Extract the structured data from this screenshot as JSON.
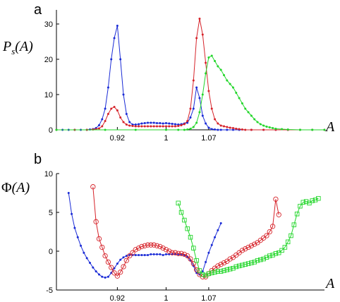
{
  "chart_data": [
    {
      "type": "line",
      "panel_label": "a",
      "ylabel": "P_s(A)",
      "ylabel_main": "P",
      "ylabel_sub": "s",
      "ylabel_tail": "(A)",
      "xlabel": "A",
      "xlim": [
        0.82,
        1.26
      ],
      "ylim": [
        0,
        34
      ],
      "yticks": [
        0,
        10,
        20,
        30
      ],
      "xticks": [
        0.92,
        1,
        1.07
      ],
      "xtick_labels": [
        "0.92",
        "1",
        "1.07"
      ],
      "grid": false,
      "series": [
        {
          "color": "#1a2bd6",
          "marker": "dot",
          "x": [
            0.82,
            0.83,
            0.84,
            0.85,
            0.86,
            0.87,
            0.875,
            0.88,
            0.885,
            0.89,
            0.895,
            0.9,
            0.905,
            0.91,
            0.915,
            0.92,
            0.925,
            0.93,
            0.935,
            0.94,
            0.945,
            0.95,
            0.955,
            0.96,
            0.965,
            0.97,
            0.975,
            0.98,
            0.985,
            0.99,
            0.995,
            1.0,
            1.005,
            1.01,
            1.015,
            1.02,
            1.025,
            1.03,
            1.035,
            1.04,
            1.045,
            1.05,
            1.055,
            1.06,
            1.065,
            1.07,
            1.075,
            1.08,
            1.085,
            1.09,
            1.1,
            1.11,
            1.12,
            1.14,
            1.16,
            1.18,
            1.2,
            1.22,
            1.24,
            1.26
          ],
          "y": [
            0,
            0,
            0,
            0,
            0,
            0,
            0.1,
            0.2,
            0.5,
            1.3,
            3,
            6,
            12,
            20,
            26,
            29.5,
            20,
            10,
            4.5,
            2.2,
            1.5,
            1.5,
            1.6,
            1.8,
            1.9,
            2.0,
            2.0,
            2.0,
            1.9,
            1.9,
            1.8,
            1.9,
            1.8,
            1.7,
            1.6,
            1.5,
            1.6,
            1.8,
            2.0,
            3.5,
            6,
            12,
            9,
            4,
            1.8,
            0.6,
            0.2,
            0.1,
            0,
            0,
            0,
            0,
            0,
            0,
            0,
            0,
            0,
            0,
            0,
            0
          ]
        },
        {
          "color": "#d6232a",
          "marker": "dot",
          "x": [
            0.82,
            0.85,
            0.87,
            0.88,
            0.885,
            0.89,
            0.895,
            0.9,
            0.905,
            0.91,
            0.915,
            0.92,
            0.925,
            0.93,
            0.935,
            0.94,
            0.945,
            0.95,
            0.955,
            0.96,
            0.965,
            0.97,
            0.975,
            0.98,
            0.985,
            0.99,
            0.995,
            1.0,
            1.005,
            1.01,
            1.015,
            1.02,
            1.025,
            1.03,
            1.035,
            1.04,
            1.045,
            1.05,
            1.055,
            1.06,
            1.065,
            1.07,
            1.075,
            1.08,
            1.085,
            1.09,
            1.095,
            1.1,
            1.105,
            1.11,
            1.115,
            1.12,
            1.125,
            1.13,
            1.14,
            1.16,
            1.18,
            1.2,
            1.22,
            1.24,
            1.26
          ],
          "y": [
            0,
            0,
            0,
            0.1,
            0.2,
            0.4,
            1,
            2.5,
            4.5,
            6,
            6.5,
            5.5,
            3.5,
            2.2,
            1.5,
            1.2,
            1.1,
            1.0,
            1.0,
            1.0,
            1.0,
            1.0,
            1.0,
            1.0,
            1.0,
            1.0,
            1.0,
            1.0,
            1.0,
            1.0,
            1.0,
            1.1,
            1.3,
            1.6,
            2.5,
            6,
            14,
            26,
            31.5,
            27,
            19,
            11,
            6,
            3,
            1.8,
            1.2,
            1.0,
            0.8,
            0.6,
            0.5,
            0.3,
            0.2,
            0.1,
            0,
            0,
            0,
            0,
            0,
            0,
            0,
            0
          ]
        },
        {
          "color": "#22d62a",
          "marker": "dot",
          "x": [
            0.82,
            0.9,
            0.95,
            1.0,
            1.02,
            1.03,
            1.035,
            1.04,
            1.045,
            1.05,
            1.055,
            1.06,
            1.065,
            1.07,
            1.075,
            1.08,
            1.085,
            1.09,
            1.095,
            1.1,
            1.105,
            1.11,
            1.115,
            1.12,
            1.125,
            1.13,
            1.135,
            1.14,
            1.145,
            1.15,
            1.155,
            1.16,
            1.165,
            1.17,
            1.175,
            1.18,
            1.19,
            1.2,
            1.22,
            1.24,
            1.26
          ],
          "y": [
            0,
            0,
            0,
            0,
            0,
            0,
            0.1,
            0.3,
            0.8,
            2,
            5,
            10,
            16,
            20.5,
            21,
            19.5,
            18,
            17,
            15.5,
            14,
            13,
            12,
            10.5,
            9,
            7.5,
            6,
            5,
            4,
            3,
            2.2,
            1.6,
            1.2,
            0.9,
            0.7,
            0.5,
            0.3,
            0.2,
            0.1,
            0,
            0,
            0
          ]
        }
      ]
    },
    {
      "type": "line",
      "panel_label": "b",
      "ylabel": "Φ(A)",
      "ylabel_main": "Φ",
      "ylabel_tail": "(A)",
      "xlabel": "A",
      "xlim": [
        0.82,
        1.26
      ],
      "ylim": [
        -5,
        10
      ],
      "yticks": [
        -5,
        0,
        5,
        10
      ],
      "xticks": [
        0.92,
        1,
        1.07
      ],
      "xtick_labels": [
        "0.92",
        "1",
        "1.07"
      ],
      "grid": false,
      "series": [
        {
          "color": "#1a2bd6",
          "marker": "dot",
          "x": [
            0.84,
            0.845,
            0.85,
            0.855,
            0.86,
            0.865,
            0.87,
            0.875,
            0.88,
            0.885,
            0.89,
            0.895,
            0.9,
            0.905,
            0.91,
            0.915,
            0.92,
            0.925,
            0.93,
            0.935,
            0.94,
            0.945,
            0.95,
            0.955,
            0.96,
            0.965,
            0.97,
            0.975,
            0.98,
            0.985,
            0.99,
            0.995,
            1.0,
            1.005,
            1.01,
            1.015,
            1.02,
            1.025,
            1.03,
            1.035,
            1.04,
            1.045,
            1.05,
            1.055,
            1.06,
            1.065,
            1.07,
            1.075,
            1.08,
            1.085,
            1.09
          ],
          "y": [
            7.5,
            4.8,
            3.0,
            1.8,
            0.7,
            -0.2,
            -0.9,
            -1.5,
            -2.1,
            -2.6,
            -3.0,
            -3.3,
            -3.4,
            -3.3,
            -2.8,
            -2.2,
            -1.6,
            -1.1,
            -0.8,
            -0.6,
            -0.5,
            -0.5,
            -0.5,
            -0.5,
            -0.5,
            -0.5,
            -0.5,
            -0.4,
            -0.4,
            -0.4,
            -0.4,
            -0.5,
            -0.4,
            -0.4,
            -0.4,
            -0.4,
            -0.4,
            -0.4,
            -0.5,
            -0.7,
            -1.2,
            -1.9,
            -2.8,
            -3.0,
            -2.6,
            -1.4,
            -0.2,
            0.8,
            1.8,
            2.7,
            3.6
          ]
        },
        {
          "color": "#d6232a",
          "marker": "circle",
          "x": [
            0.88,
            0.885,
            0.89,
            0.895,
            0.9,
            0.905,
            0.91,
            0.915,
            0.92,
            0.925,
            0.93,
            0.935,
            0.94,
            0.945,
            0.95,
            0.955,
            0.96,
            0.965,
            0.97,
            0.975,
            0.98,
            0.985,
            0.99,
            0.995,
            1.0,
            1.005,
            1.01,
            1.015,
            1.02,
            1.025,
            1.03,
            1.035,
            1.04,
            1.045,
            1.05,
            1.055,
            1.06,
            1.065,
            1.07,
            1.075,
            1.08,
            1.085,
            1.09,
            1.095,
            1.1,
            1.105,
            1.11,
            1.115,
            1.12,
            1.125,
            1.13,
            1.135,
            1.14,
            1.145,
            1.15,
            1.155,
            1.16,
            1.165,
            1.17,
            1.175,
            1.18,
            1.185
          ],
          "y": [
            8.3,
            3.8,
            1.6,
            0.5,
            -0.6,
            -1.4,
            -2.1,
            -2.8,
            -3.2,
            -2.7,
            -2.0,
            -1.2,
            -0.6,
            -0.2,
            0.2,
            0.4,
            0.6,
            0.7,
            0.8,
            0.8,
            0.8,
            0.7,
            0.6,
            0.4,
            0.2,
            0.0,
            -0.2,
            -0.2,
            -0.3,
            -0.3,
            -0.4,
            -0.6,
            -1.0,
            -1.6,
            -2.4,
            -3.0,
            -3.3,
            -3.3,
            -2.9,
            -2.5,
            -2.2,
            -1.9,
            -1.7,
            -1.5,
            -1.3,
            -1.0,
            -0.8,
            -0.5,
            -0.2,
            0.1,
            0.3,
            0.5,
            0.7,
            0.9,
            1.1,
            1.4,
            1.7,
            2.0,
            2.5,
            3.2,
            6.7,
            4.7
          ]
        },
        {
          "color": "#22d62a",
          "marker": "square",
          "x": [
            1.02,
            1.025,
            1.03,
            1.035,
            1.04,
            1.045,
            1.05,
            1.055,
            1.06,
            1.065,
            1.07,
            1.075,
            1.08,
            1.085,
            1.09,
            1.095,
            1.1,
            1.105,
            1.11,
            1.115,
            1.12,
            1.125,
            1.13,
            1.135,
            1.14,
            1.145,
            1.15,
            1.155,
            1.16,
            1.165,
            1.17,
            1.175,
            1.18,
            1.185,
            1.19,
            1.195,
            1.2,
            1.205,
            1.21,
            1.215,
            1.22,
            1.225,
            1.23,
            1.235,
            1.24,
            1.245,
            1.25
          ],
          "y": [
            6.2,
            5.0,
            4.0,
            2.9,
            1.8,
            0.4,
            -1.2,
            -2.5,
            -3.0,
            -3.1,
            -2.9,
            -2.8,
            -2.7,
            -2.6,
            -2.6,
            -2.5,
            -2.4,
            -2.3,
            -2.2,
            -2.0,
            -1.9,
            -1.8,
            -1.7,
            -1.6,
            -1.5,
            -1.4,
            -1.2,
            -1.1,
            -1.0,
            -0.8,
            -0.6,
            -0.5,
            -0.3,
            -0.2,
            0.1,
            0.5,
            1.2,
            2.0,
            3.4,
            4.8,
            5.8,
            6.3,
            6.4,
            6.2,
            6.5,
            6.6,
            6.8
          ]
        }
      ]
    }
  ]
}
